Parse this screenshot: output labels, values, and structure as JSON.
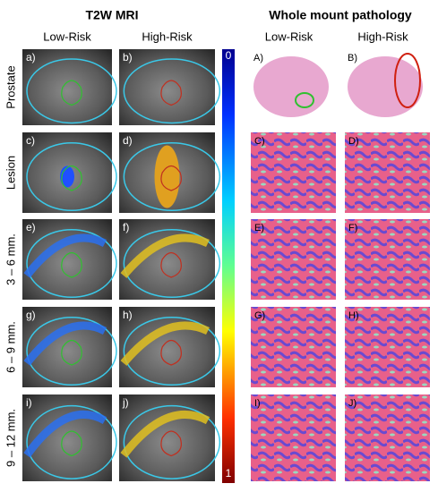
{
  "mri": {
    "title": "T2W MRI",
    "columns": [
      "Low-Risk",
      "High-Risk"
    ],
    "rows": [
      "Prostate",
      "Lesion",
      "3 – 6 mm.",
      "6 – 9 mm.",
      "9 – 12 mm."
    ],
    "panels": [
      "a)",
      "b)",
      "c)",
      "d)",
      "e)",
      "f)",
      "g)",
      "h)",
      "i)",
      "j)"
    ]
  },
  "colorbar": {
    "top": "0",
    "bottom": "1"
  },
  "pathology": {
    "title": "Whole mount pathology",
    "columns": [
      "Low-Risk",
      "High-Risk"
    ],
    "panels": [
      "A)",
      "B)",
      "C)",
      "D)",
      "E)",
      "F)",
      "G)",
      "H)",
      "I)",
      "J)"
    ]
  }
}
